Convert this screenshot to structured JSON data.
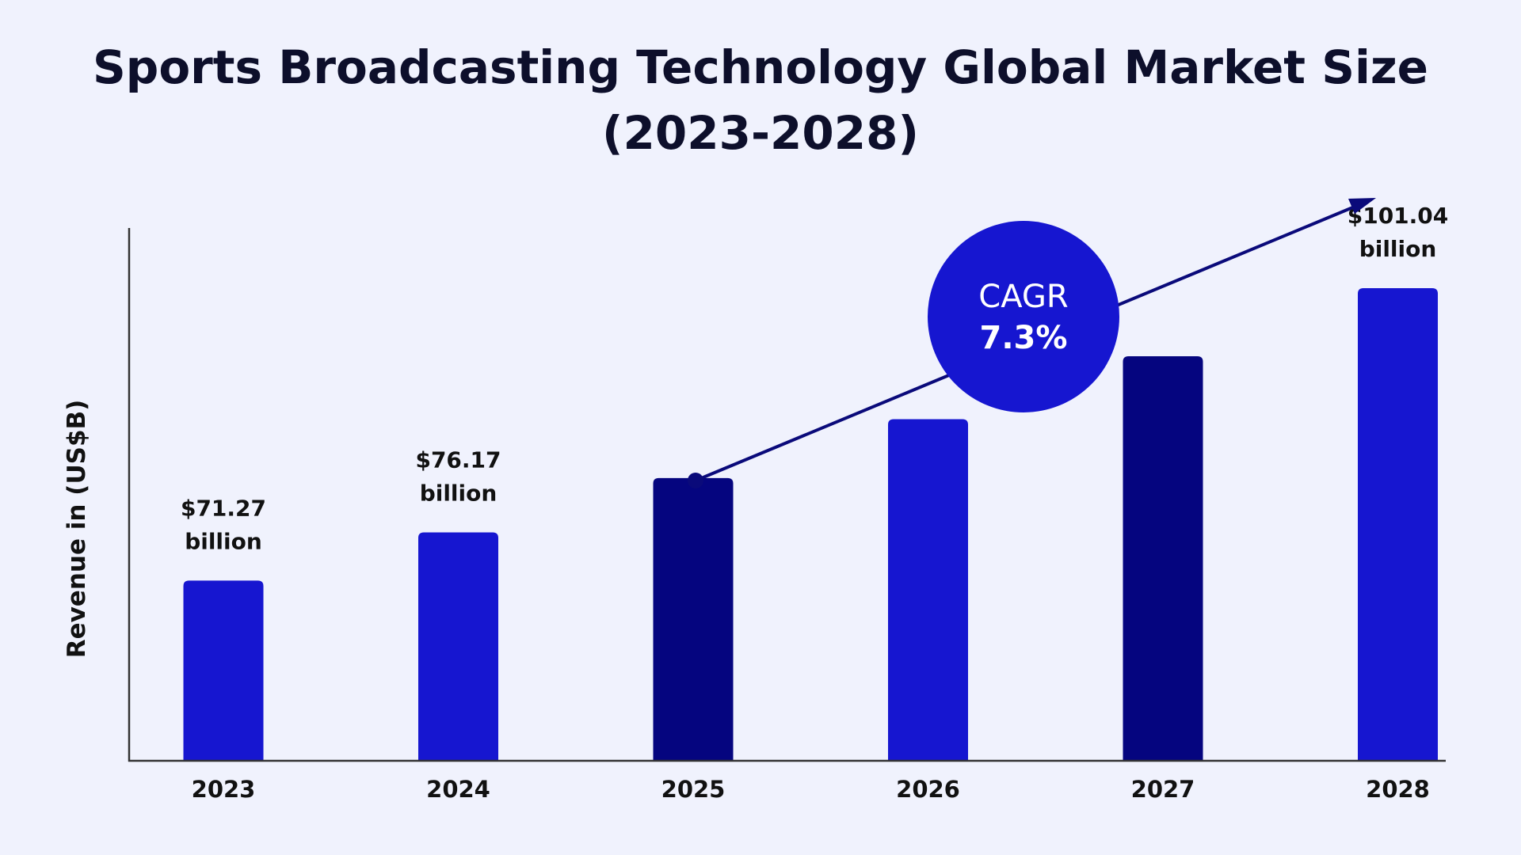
{
  "chart_data": {
    "type": "bar",
    "title_line1": "Sports Broadcasting Technology Global Market Size",
    "title_line2": "(2023-2028)",
    "xlabel": "",
    "ylabel": "Revenue in (US$B)",
    "categories": [
      "2023",
      "2024",
      "2025",
      "2026",
      "2027",
      "2028"
    ],
    "values": [
      71.27,
      76.17,
      81.7,
      87.7,
      94.1,
      101.04
    ],
    "value_labels": [
      {
        "index": 0,
        "amount": "$71.27",
        "unit": "billion"
      },
      {
        "index": 1,
        "amount": "$76.17",
        "unit": "billion"
      },
      {
        "index": 5,
        "amount": "$101.04",
        "unit": "billion"
      }
    ],
    "ylim": [
      53,
      107
    ],
    "grid": false,
    "bar_colors": [
      "#1616d0",
      "#1616d0",
      "#05057f",
      "#1616d0",
      "#05057f",
      "#1616d0"
    ],
    "annotation": {
      "label": "CAGR",
      "value": "7.3%",
      "circle_color": "#1616d0",
      "line_color": "#0a0a7a"
    }
  }
}
